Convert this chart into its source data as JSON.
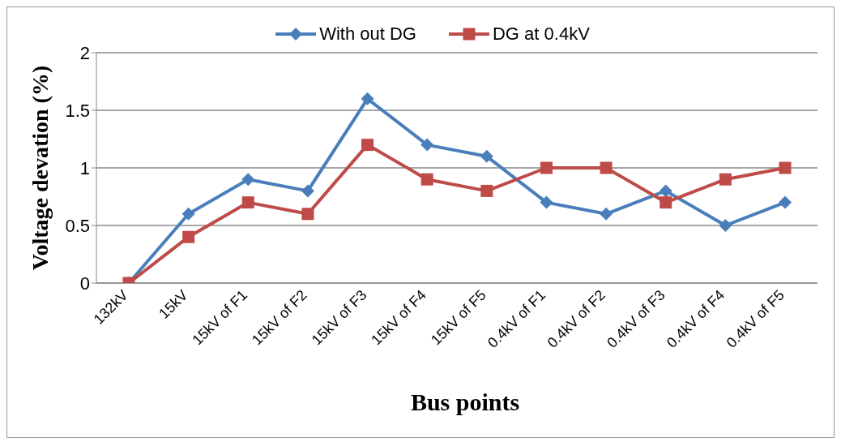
{
  "chart_data": {
    "type": "line",
    "xlabel": "Bus points",
    "ylabel": "Voltage devation (%)",
    "categories": [
      "132kV",
      "15kV",
      "15kV of F1",
      "15kV of F2",
      "15kV of F3",
      "15kV of F4",
      "15kV of F5",
      "0.4kV of F1",
      "0.4kV of F2",
      "0.4kV of F3",
      "0.4kV of F4",
      "0.4kV of F5"
    ],
    "series": [
      {
        "name": "With out DG",
        "color": "#4a7ebb",
        "marker": "diamond",
        "values": [
          0,
          0.6,
          0.9,
          0.8,
          1.6,
          1.2,
          1.1,
          0.7,
          0.6,
          0.8,
          0.5,
          0.7
        ]
      },
      {
        "name": "DG at 0.4kV",
        "color": "#be4b48",
        "marker": "square",
        "values": [
          0,
          0.4,
          0.7,
          0.6,
          1.2,
          0.9,
          0.8,
          1.0,
          1.0,
          0.7,
          0.9,
          1.0
        ]
      }
    ],
    "ylim": [
      0,
      2
    ],
    "yticks": [
      0,
      0.5,
      1,
      1.5,
      2
    ],
    "grid": "y",
    "legend": "top",
    "line_style": "solid"
  }
}
